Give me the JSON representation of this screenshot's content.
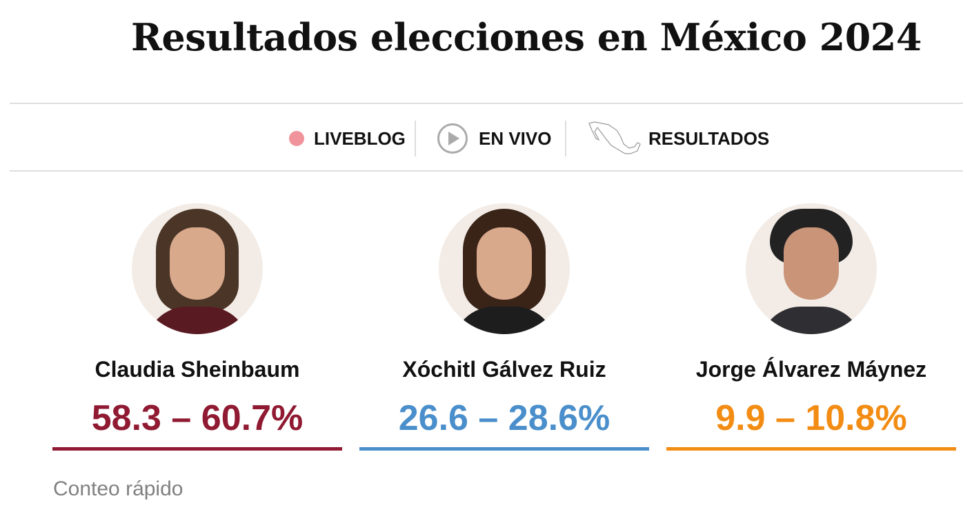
{
  "title": "Resultados elecciones en México 2024",
  "nav": {
    "liveblog": "LIVEBLOG",
    "en_vivo": "EN VIVO",
    "resultados": "RESULTADOS"
  },
  "candidates": [
    {
      "name": "Claudia Sheinbaum",
      "range": "58.3 – 60.7%",
      "color": "#8f1a32"
    },
    {
      "name": "Xóchitl Gálvez Ruiz",
      "range": "26.6 – 28.6%",
      "color": "#4a8fcb"
    },
    {
      "name": "Jorge Álvarez Máynez",
      "range": "9.9 – 10.8%",
      "color": "#f28c13"
    }
  ],
  "note": "Conteo rápido"
}
